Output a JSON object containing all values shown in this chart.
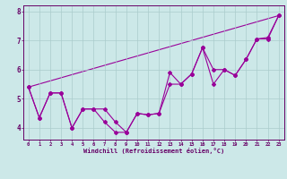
{
  "xlabel": "Windchill (Refroidissement éolien,°C)",
  "x": [
    0,
    1,
    2,
    3,
    4,
    5,
    6,
    7,
    8,
    9,
    10,
    11,
    12,
    13,
    14,
    15,
    16,
    17,
    18,
    19,
    20,
    21,
    22,
    23
  ],
  "line1": [
    5.4,
    4.35,
    5.2,
    5.2,
    4.0,
    4.65,
    4.65,
    4.65,
    4.2,
    3.85,
    4.5,
    4.45,
    4.5,
    5.9,
    5.5,
    5.85,
    6.75,
    5.5,
    6.0,
    5.8,
    6.35,
    7.05,
    7.05,
    7.85
  ],
  "line2": [
    5.4,
    4.35,
    5.2,
    5.2,
    4.0,
    4.65,
    4.65,
    4.2,
    3.85,
    3.85,
    4.5,
    4.45,
    4.5,
    5.5,
    5.5,
    5.85,
    6.75,
    6.0,
    6.0,
    5.8,
    6.35,
    7.05,
    7.1,
    7.85
  ],
  "line3_x": [
    0,
    23
  ],
  "line3_y": [
    5.4,
    7.85
  ],
  "line_color": "#990099",
  "bg_color": "#cce8e8",
  "grid_color": "#aacccc",
  "ylim": [
    3.6,
    8.2
  ],
  "xlim": [
    -0.5,
    23.5
  ],
  "yticks": [
    4,
    5,
    6,
    7,
    8
  ],
  "xticks": [
    0,
    1,
    2,
    3,
    4,
    5,
    6,
    7,
    8,
    9,
    10,
    11,
    12,
    13,
    14,
    15,
    16,
    17,
    18,
    19,
    20,
    21,
    22,
    23
  ],
  "tick_color": "#660066",
  "label_color": "#660066"
}
